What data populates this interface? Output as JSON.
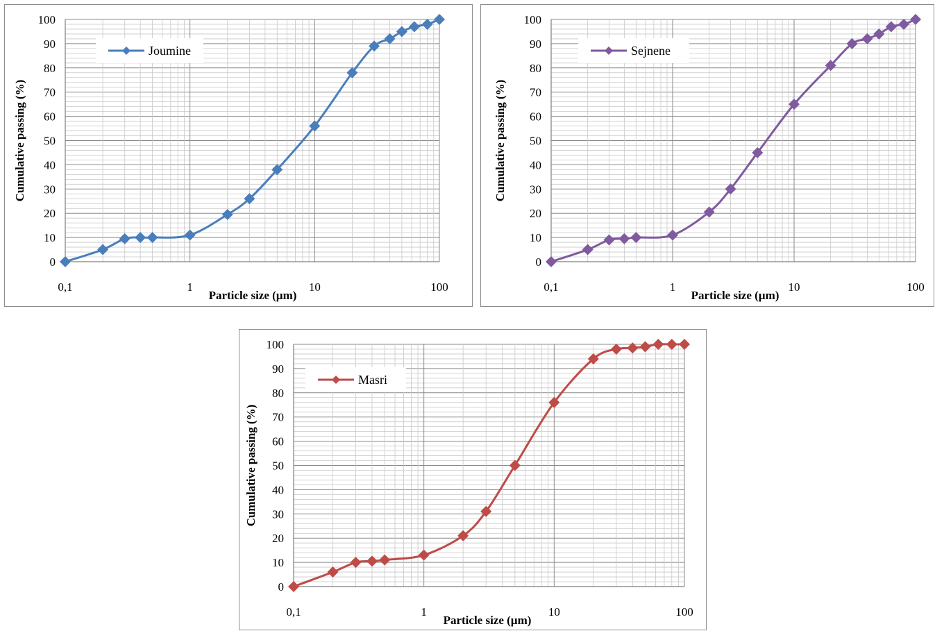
{
  "chart_data": [
    {
      "type": "line",
      "xscale": "log",
      "xlim": [
        0.1,
        100
      ],
      "ylim": [
        0,
        100
      ],
      "xticks": [
        "0,1",
        "1",
        "10",
        "100"
      ],
      "yticks": [
        "0",
        "10",
        "20",
        "30",
        "40",
        "50",
        "60",
        "70",
        "80",
        "90",
        "100"
      ],
      "xlabel": "Particle size (µm)",
      "ylabel": "Cumulative passing (%)",
      "grid": true,
      "legend": "top-left",
      "color": "#4a7ebb",
      "series": [
        {
          "name": "Joumine",
          "x": [
            0.1,
            0.2,
            0.3,
            0.4,
            0.5,
            1,
            2,
            3,
            5,
            10,
            20,
            30,
            40,
            50,
            63,
            80,
            100
          ],
          "y": [
            0,
            5,
            9.5,
            10,
            10,
            11,
            19.5,
            26,
            38,
            56,
            78,
            89,
            92,
            95,
            97,
            98,
            100
          ]
        }
      ]
    },
    {
      "type": "line",
      "xscale": "log",
      "xlim": [
        0.1,
        100
      ],
      "ylim": [
        0,
        100
      ],
      "xticks": [
        "0,1",
        "1",
        "10",
        "100"
      ],
      "yticks": [
        "0",
        "10",
        "20",
        "30",
        "40",
        "50",
        "60",
        "70",
        "80",
        "90",
        "100"
      ],
      "xlabel": "Particle size (µm)",
      "ylabel": "Cumulative passing (%)",
      "grid": true,
      "legend": "top-left",
      "color": "#7f5a9e",
      "series": [
        {
          "name": "Sejnene",
          "x": [
            0.1,
            0.2,
            0.3,
            0.4,
            0.5,
            1,
            2,
            3,
            5,
            10,
            20,
            30,
            40,
            50,
            63,
            80,
            100
          ],
          "y": [
            0,
            5,
            9,
            9.5,
            10,
            11,
            20.5,
            30,
            45,
            65,
            81,
            90,
            92,
            94,
            97,
            98,
            100
          ]
        }
      ]
    },
    {
      "type": "line",
      "xscale": "log",
      "xlim": [
        0.1,
        100
      ],
      "ylim": [
        0,
        100
      ],
      "xticks": [
        "0,1",
        "1",
        "10",
        "100"
      ],
      "yticks": [
        "0",
        "10",
        "20",
        "30",
        "40",
        "50",
        "60",
        "70",
        "80",
        "90",
        "100"
      ],
      "xlabel": "Particle size (µm)",
      "ylabel": "Cumulative passing (%)",
      "grid": true,
      "legend": "top-left",
      "color": "#be4b48",
      "series": [
        {
          "name": "Masri",
          "x": [
            0.1,
            0.2,
            0.3,
            0.4,
            0.5,
            1,
            2,
            3,
            5,
            10,
            20,
            30,
            40,
            50,
            63,
            80,
            100
          ],
          "y": [
            0,
            6,
            10,
            10.5,
            11,
            13,
            21,
            31,
            50,
            76,
            94,
            98,
            98.5,
            99,
            100,
            100,
            100
          ]
        }
      ]
    }
  ]
}
